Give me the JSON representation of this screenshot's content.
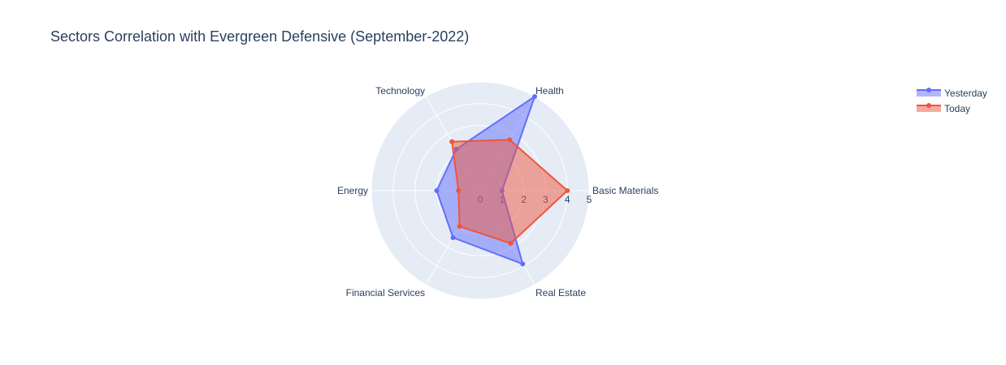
{
  "chart_data": {
    "type": "radar",
    "title": "Sectors Correlation with Evergreen Defensive (September-2022)",
    "categories": [
      "Basic Materials",
      "Health",
      "Technology",
      "Energy",
      "Financial Services",
      "Real Estate"
    ],
    "radial_ticks": [
      "0",
      "1",
      "2",
      "3",
      "4",
      "5"
    ],
    "rlim": [
      0,
      5
    ],
    "grid": true,
    "legend_position": "top-right",
    "series": [
      {
        "name": "Yesterday",
        "values": [
          1.0,
          5.0,
          2.2,
          2.0,
          2.5,
          3.9
        ],
        "color": "#636efa"
      },
      {
        "name": "Today",
        "values": [
          4.0,
          2.7,
          2.6,
          1.0,
          1.9,
          2.8
        ],
        "color": "#ef553b"
      }
    ]
  }
}
